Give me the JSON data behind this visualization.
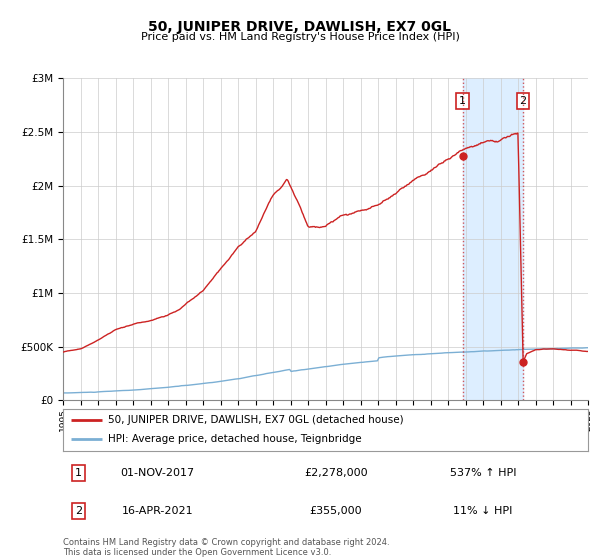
{
  "title": "50, JUNIPER DRIVE, DAWLISH, EX7 0GL",
  "subtitle": "Price paid vs. HM Land Registry's House Price Index (HPI)",
  "legend_line1": "50, JUNIPER DRIVE, DAWLISH, EX7 0GL (detached house)",
  "legend_line2": "HPI: Average price, detached house, Teignbridge",
  "annotation1_label": "1",
  "annotation1_date": "01-NOV-2017",
  "annotation1_price": "£2,278,000",
  "annotation1_hpi": "537% ↑ HPI",
  "annotation2_label": "2",
  "annotation2_date": "16-APR-2021",
  "annotation2_price": "£355,000",
  "annotation2_hpi": "11% ↓ HPI",
  "footer": "Contains HM Land Registry data © Crown copyright and database right 2024.\nThis data is licensed under the Open Government Licence v3.0.",
  "xlim": [
    1995,
    2025
  ],
  "ylim": [
    0,
    3000000
  ],
  "hpi_color": "#7bafd4",
  "price_color": "#cc2222",
  "marker_color": "#cc2222",
  "vline_color": "#cc3333",
  "shaded_color": "#ddeeff",
  "background_color": "#ffffff",
  "grid_color": "#cccccc",
  "event1_x": 2017.833,
  "event1_y": 2278000,
  "event2_x": 2021.292,
  "event2_y": 355000
}
